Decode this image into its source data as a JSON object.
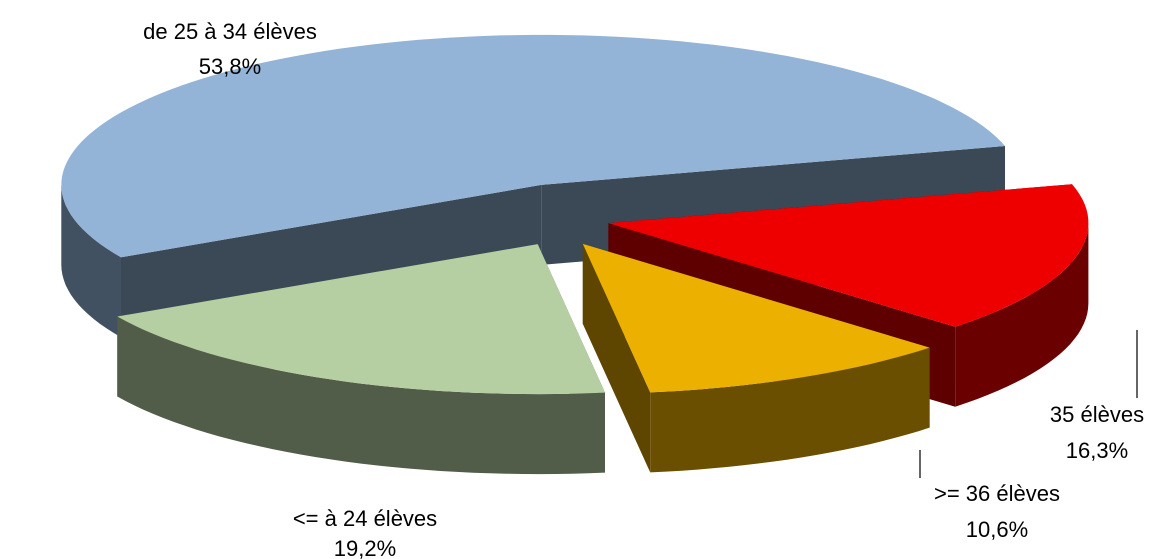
{
  "chart_data": {
    "type": "pie3d",
    "categories": [
      "35 élèves",
      ">= 36 élèves",
      "<= à 24 élèves",
      "de 25 à 34 élèves"
    ],
    "values": [
      16.3,
      10.6,
      19.2,
      53.8
    ],
    "value_labels": [
      "16,3%",
      "10,6%",
      "19,2%",
      "53,8%"
    ],
    "colors": [
      "#ee0000",
      "#ebb000",
      "#b6cfa2",
      "#93b4d7"
    ]
  }
}
